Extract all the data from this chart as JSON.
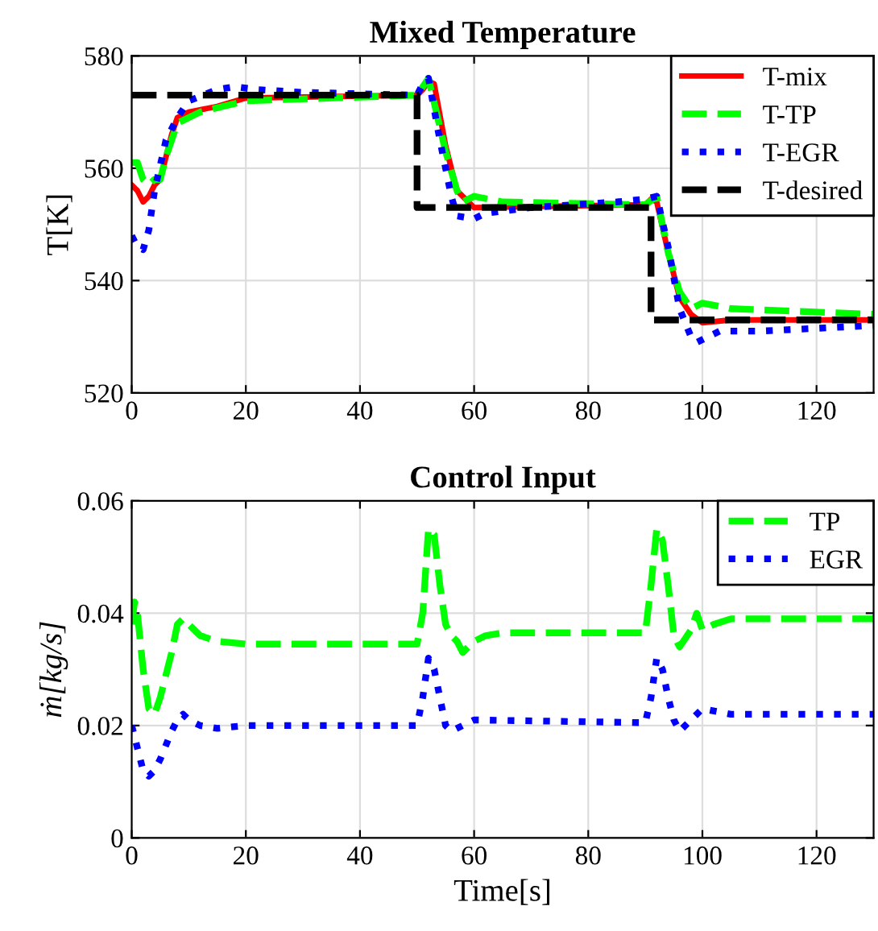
{
  "chart_data": [
    {
      "type": "line",
      "title": "Mixed Temperature",
      "ylabel": "T[K]",
      "xlim": [
        0,
        130
      ],
      "xticks": [
        0,
        20,
        40,
        60,
        80,
        100,
        120
      ],
      "ylim": [
        520,
        580
      ],
      "yticks": [
        520,
        540,
        560,
        580
      ],
      "grid": true,
      "legend": "top right",
      "series": [
        {
          "name": "T-mix",
          "color": "#ff0000",
          "line_style": "solid",
          "x": [
            0,
            1,
            2,
            3,
            4,
            5,
            7,
            8,
            10,
            15,
            20,
            50,
            51,
            52,
            53,
            55,
            57,
            60,
            90,
            91,
            92,
            94,
            96,
            98,
            100,
            105,
            130
          ],
          "values": [
            557,
            556,
            554,
            555,
            557,
            558,
            566,
            569,
            570,
            571,
            572.5,
            573,
            574,
            575.5,
            575,
            564,
            556,
            553,
            553.5,
            554.5,
            554,
            545,
            537,
            534,
            532.5,
            533,
            533
          ]
        },
        {
          "name": "T-TP",
          "color": "#00ff00",
          "line_style": "dashed",
          "x": [
            0,
            1,
            2,
            3,
            4,
            5,
            6,
            8,
            12,
            20,
            50,
            52,
            55,
            57,
            58,
            60,
            65,
            90,
            92,
            94,
            96,
            98,
            100,
            105,
            130
          ],
          "values": [
            561,
            561,
            558,
            557,
            558,
            558,
            562,
            568,
            570,
            572,
            573,
            576,
            563,
            556,
            554,
            555,
            554,
            553.5,
            555,
            545,
            538,
            535,
            536,
            535,
            534
          ]
        },
        {
          "name": "T-EGR",
          "color": "#0000ff",
          "line_style": "dotted",
          "x": [
            0,
            1,
            2,
            3,
            4,
            6,
            8,
            10,
            15,
            18,
            22,
            30,
            50,
            51,
            52,
            54,
            56,
            57,
            60,
            62,
            70,
            85,
            90,
            92,
            94,
            96,
            98,
            99,
            101,
            103,
            110,
            130
          ],
          "values": [
            548,
            546,
            545.5,
            549,
            556,
            565,
            569,
            572,
            574,
            574.5,
            574,
            573.5,
            573,
            575,
            576,
            565,
            555,
            551.5,
            551,
            552,
            553,
            554,
            554.5,
            555,
            546,
            535,
            530,
            529,
            530,
            531,
            531,
            532
          ]
        },
        {
          "name": "T-desired",
          "color": "#000000",
          "line_style": "dashed",
          "x": [
            0,
            50,
            50,
            91,
            91,
            130
          ],
          "values": [
            573,
            573,
            553,
            553,
            533,
            533
          ]
        }
      ]
    },
    {
      "type": "line",
      "title": "Control Input",
      "xlabel": "Time[s]",
      "ylabel": "ṁ[kg/s]",
      "xlim": [
        0,
        130
      ],
      "xticks": [
        0,
        20,
        40,
        60,
        80,
        100,
        120
      ],
      "ylim": [
        0,
        0.06
      ],
      "yticks": [
        0,
        0.02,
        0.04,
        0.06
      ],
      "grid": true,
      "legend": "top right",
      "series": [
        {
          "name": "TP",
          "color": "#00ff00",
          "line_style": "dashed",
          "x": [
            0,
            0.5,
            1,
            2,
            3,
            4,
            5,
            7,
            8,
            9,
            10,
            12,
            15,
            20,
            50,
            51,
            52,
            53,
            54,
            55,
            56,
            57,
            58,
            60,
            62,
            65,
            90,
            91,
            92,
            93,
            94,
            95,
            96,
            98,
            99,
            100,
            102,
            105,
            130
          ],
          "values": [
            0.038,
            0.042,
            0.04,
            0.03,
            0.023,
            0.022,
            0.025,
            0.033,
            0.038,
            0.039,
            0.038,
            0.036,
            0.035,
            0.0345,
            0.0345,
            0.04,
            0.055,
            0.054,
            0.045,
            0.038,
            0.036,
            0.035,
            0.033,
            0.035,
            0.036,
            0.0365,
            0.0365,
            0.045,
            0.055,
            0.053,
            0.045,
            0.036,
            0.034,
            0.037,
            0.04,
            0.037,
            0.038,
            0.039,
            0.039
          ]
        },
        {
          "name": "EGR",
          "color": "#0000ff",
          "line_style": "dotted",
          "x": [
            0,
            1,
            2,
            3,
            4,
            5,
            7,
            8,
            9,
            10,
            12,
            15,
            20,
            50,
            51,
            52,
            53,
            54,
            55,
            56,
            58,
            60,
            90,
            91,
            92,
            93,
            94,
            95,
            96,
            98,
            99,
            100,
            105,
            130
          ],
          "values": [
            0.02,
            0.016,
            0.012,
            0.011,
            0.012,
            0.014,
            0.019,
            0.021,
            0.022,
            0.021,
            0.02,
            0.0195,
            0.02,
            0.02,
            0.025,
            0.032,
            0.03,
            0.025,
            0.02,
            0.019,
            0.02,
            0.021,
            0.0205,
            0.025,
            0.032,
            0.03,
            0.025,
            0.021,
            0.019,
            0.021,
            0.022,
            0.023,
            0.022,
            0.022
          ]
        }
      ]
    }
  ]
}
